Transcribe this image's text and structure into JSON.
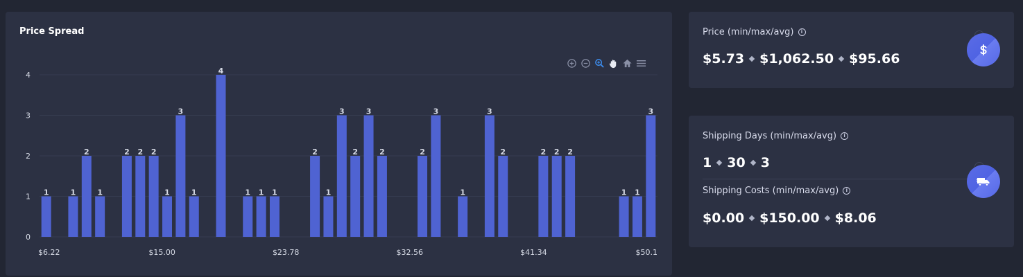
{
  "chart_card": {
    "title": "Price Spread",
    "toolbar_icons": [
      "zoom-in-icon",
      "zoom-out-icon",
      "selection-zoom-icon",
      "pan-hand-icon",
      "home-icon",
      "menu-icon"
    ]
  },
  "chart_data": {
    "type": "bar",
    "title": "Price Spread",
    "xlabel": "",
    "ylabel": "",
    "ylim": [
      0,
      4
    ],
    "yticks": [
      0,
      1,
      2,
      3,
      4
    ],
    "x_tick_labels": [
      "$6.22",
      "$15.00",
      "$23.78",
      "$32.56",
      "$41.34",
      "$50.1"
    ],
    "values": [
      1,
      0,
      1,
      2,
      1,
      0,
      2,
      2,
      2,
      1,
      3,
      1,
      0,
      4,
      0,
      1,
      1,
      1,
      0,
      0,
      2,
      1,
      3,
      2,
      3,
      2,
      0,
      0,
      2,
      3,
      0,
      1,
      0,
      3,
      2,
      0,
      0,
      2,
      2,
      2,
      0,
      0,
      0,
      1,
      1,
      3
    ],
    "bar_color": "#4f63d2",
    "grid": true,
    "data_labels": true
  },
  "price": {
    "label": "Price (min/max/avg)",
    "min": "$5.73",
    "max": "$1,062.50",
    "avg": "$95.66",
    "icon": "dollar-icon"
  },
  "shipping": {
    "days_label": "Shipping Days (min/max/avg)",
    "days_min": "1",
    "days_max": "30",
    "days_avg": "3",
    "costs_label": "Shipping Costs (min/max/avg)",
    "costs_min": "$0.00",
    "costs_max": "$150.00",
    "costs_avg": "$8.06",
    "icon": "truck-icon"
  },
  "colors": {
    "background": "#222633",
    "card": "#2c3143",
    "accent": "#4f63d2"
  }
}
